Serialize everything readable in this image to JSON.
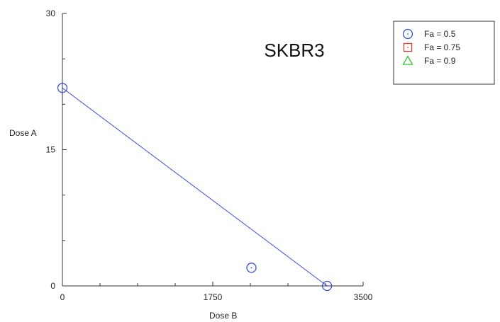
{
  "chart_data": {
    "type": "scatter",
    "title": "SKBR3",
    "xlabel": "Dose B",
    "ylabel": "Dose A",
    "xlim": [
      0,
      3500
    ],
    "ylim": [
      0,
      30
    ],
    "xticks": [
      0,
      1750,
      3500
    ],
    "yticks": [
      0,
      15,
      30
    ],
    "x_tick_labels": [
      "0",
      "1750",
      "3500"
    ],
    "y_tick_labels": [
      "0",
      "15",
      "30"
    ],
    "grid": false,
    "legend_position": "top-right",
    "series": [
      {
        "name": "Fa = 0.5",
        "marker": "circle",
        "color": "#3b4fd8",
        "points": [
          {
            "x": 0,
            "y": 21.8
          },
          {
            "x": 3080,
            "y": 0
          },
          {
            "x": 2200,
            "y": 2.0
          }
        ],
        "isobologram_line": [
          {
            "x": 0,
            "y": 21.8
          },
          {
            "x": 3080,
            "y": 0
          }
        ]
      },
      {
        "name": "Fa = 0.75",
        "marker": "square",
        "color": "#e03a2f",
        "points": []
      },
      {
        "name": "Fa = 0.9",
        "marker": "triangle",
        "color": "#2fc42f",
        "points": []
      }
    ]
  }
}
